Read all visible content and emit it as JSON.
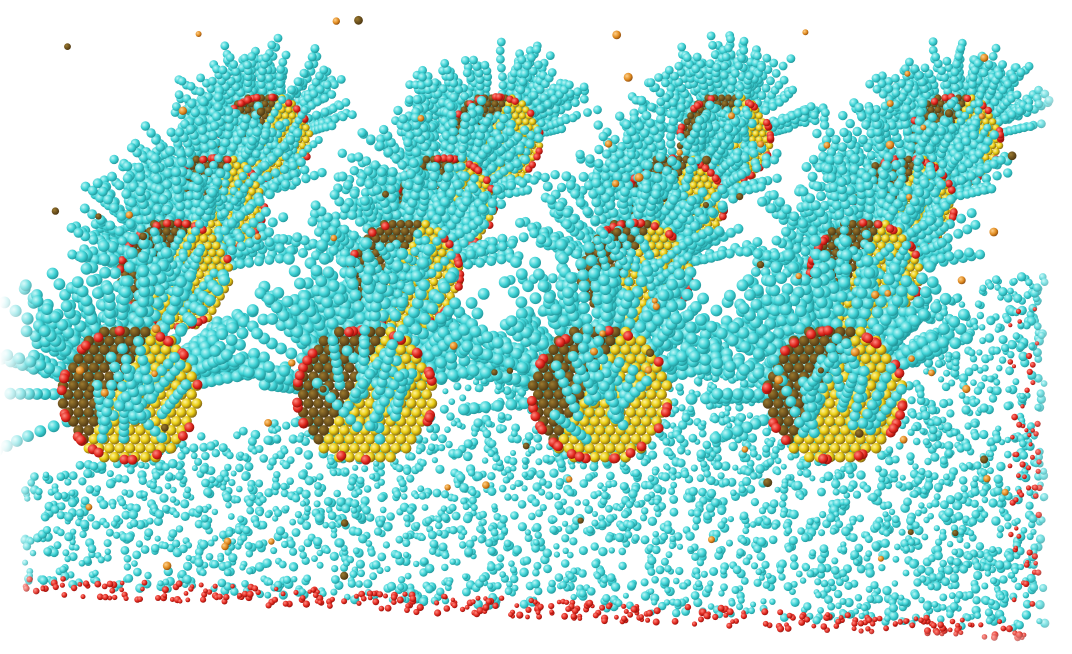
{
  "scene": {
    "colors": {
      "background": "#ffffff",
      "ligand_cyan": "#3fd3d6",
      "ligand_cyan_dark": "#27a9ad",
      "ligand_cyan_light": "#9ef0f0",
      "core_gold": "#e9cd12",
      "core_gold_dark": "#7a5c12",
      "core_brown": "#5e4414",
      "head_red": "#e0261d",
      "ion_orange": "#e08a1e",
      "ion_brown": "#8a4a1c"
    },
    "nanocluster_rows": 4,
    "nanocluster_columns": 4
  }
}
